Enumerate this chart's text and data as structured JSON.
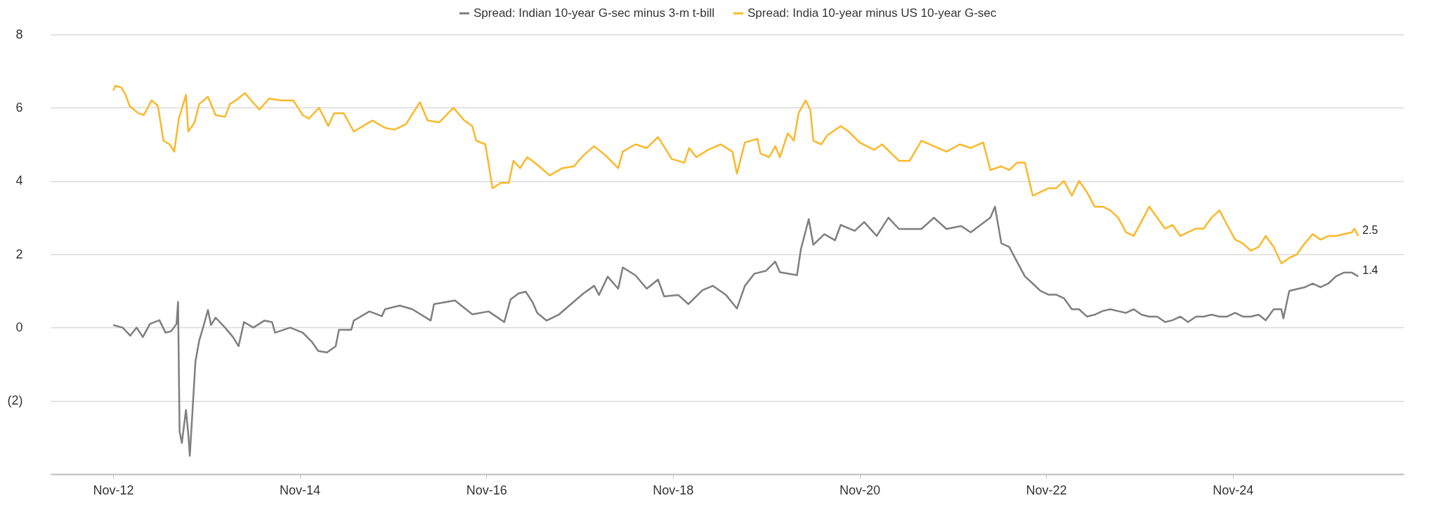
{
  "chart_data": {
    "type": "line",
    "legend": "top",
    "grid": "y",
    "xlim": [
      "2012-03-01",
      "2026-09-01"
    ],
    "xticks": [
      {
        "value": "2012-11-01",
        "label": "Nov-12"
      },
      {
        "value": "2014-11-01",
        "label": "Nov-14"
      },
      {
        "value": "2016-11-01",
        "label": "Nov-16"
      },
      {
        "value": "2018-11-01",
        "label": "Nov-18"
      },
      {
        "value": "2020-11-01",
        "label": "Nov-20"
      },
      {
        "value": "2022-11-01",
        "label": "Nov-22"
      },
      {
        "value": "2024-11-01",
        "label": "Nov-24"
      }
    ],
    "ylim": [
      -4,
      8
    ],
    "yticks": [
      8,
      6,
      4,
      2,
      0,
      {
        "value": -2,
        "label": "(2)"
      },
      {
        "value": -4,
        "label": null
      }
    ],
    "annotations": [
      {
        "text": "2.5",
        "x": "2026-03-07",
        "y": 2.5
      },
      {
        "text": "1.4",
        "x": "2026-03-07",
        "y": 1.4
      }
    ],
    "series": [
      {
        "name": "Spread: Indian 10-year G-sec minus 3-m t-bill",
        "color": "#7f7f7f",
        "x": [
          "2012-11-01",
          "2012-12-08",
          "2013-01-07",
          "2013-02-01",
          "2013-02-25",
          "2013-03-25",
          "2013-05-01",
          "2013-05-25",
          "2013-06-16",
          "2013-07-07",
          "2013-07-13",
          "2013-07-19",
          "2013-07-28",
          "2013-08-13",
          "2013-08-22",
          "2013-08-28",
          "2013-09-07",
          "2013-09-19",
          "2013-10-04",
          "2013-10-19",
          "2013-11-07",
          "2013-11-19",
          "2013-12-07",
          "2014-01-13",
          "2014-02-13",
          "2014-03-07",
          "2014-03-28",
          "2014-05-04",
          "2014-06-16",
          "2014-07-16",
          "2014-07-28",
          "2014-09-25",
          "2014-11-13",
          "2014-12-19",
          "2015-01-13",
          "2015-02-16",
          "2015-03-22",
          "2015-04-04",
          "2015-05-22",
          "2015-06-01",
          "2015-08-01",
          "2015-09-19",
          "2015-10-01",
          "2015-11-28",
          "2016-01-16",
          "2016-03-28",
          "2016-04-10",
          "2016-07-01",
          "2016-09-07",
          "2016-11-10",
          "2017-01-10",
          "2017-02-04",
          "2017-03-07",
          "2017-04-04",
          "2017-05-01",
          "2017-05-19",
          "2017-06-25",
          "2017-08-13",
          "2017-09-28",
          "2017-11-16",
          "2017-12-28",
          "2018-01-16",
          "2018-02-19",
          "2018-04-01",
          "2018-04-19",
          "2018-06-07",
          "2018-07-22",
          "2018-09-04",
          "2018-09-28",
          "2018-11-22",
          "2019-01-01",
          "2019-02-25",
          "2019-04-07",
          "2019-05-28",
          "2019-07-10",
          "2019-08-10",
          "2019-09-16",
          "2019-11-01",
          "2019-12-07",
          "2019-12-25",
          "2020-03-01",
          "2020-03-16",
          "2020-04-16",
          "2020-05-04",
          "2020-06-16",
          "2020-07-28",
          "2020-08-19",
          "2020-10-13",
          "2020-11-19",
          "2021-01-07",
          "2021-02-22",
          "2021-04-04",
          "2021-07-01",
          "2021-08-19",
          "2021-10-07",
          "2021-12-04",
          "2022-01-10",
          "2022-03-28",
          "2022-04-15",
          "2022-05-10",
          "2022-06-10",
          "2022-07-10",
          "2022-08-10",
          "2022-09-10",
          "2022-10-10",
          "2022-11-10",
          "2022-12-10",
          "2023-01-10",
          "2023-02-10",
          "2023-03-10",
          "2023-04-10",
          "2023-05-10",
          "2023-06-10",
          "2023-07-10",
          "2023-08-10",
          "2023-09-10",
          "2023-10-10",
          "2023-11-10",
          "2023-12-10",
          "2024-01-10",
          "2024-02-10",
          "2024-03-10",
          "2024-04-10",
          "2024-05-10",
          "2024-06-10",
          "2024-07-10",
          "2024-08-10",
          "2024-09-10",
          "2024-10-10",
          "2024-11-10",
          "2024-12-10",
          "2025-01-10",
          "2025-02-10",
          "2025-03-10",
          "2025-04-10",
          "2025-05-10",
          "2025-05-18",
          "2025-06-10",
          "2025-07-10",
          "2025-08-10",
          "2025-09-10",
          "2025-10-10",
          "2025-11-10",
          "2025-12-10",
          "2026-01-10",
          "2026-02-10",
          "2026-03-07"
        ],
        "values": [
          0.07,
          0.0,
          -0.22,
          0,
          -0.26,
          0.1,
          0.2,
          -0.14,
          -0.1,
          0.1,
          0.7,
          -2.83,
          -3.15,
          -2.25,
          -2.9,
          -3.5,
          -2.35,
          -0.93,
          -0.35,
          0,
          0.48,
          0.07,
          0.27,
          0,
          -0.26,
          -0.51,
          0.15,
          0,
          0.19,
          0.15,
          -0.14,
          0,
          -0.14,
          -0.39,
          -0.64,
          -0.68,
          -0.51,
          -0.06,
          -0.06,
          0.19,
          0.44,
          0.31,
          0.5,
          0.6,
          0.5,
          0.19,
          0.64,
          0.74,
          0.36,
          0.44,
          0.15,
          0.77,
          0.93,
          0.98,
          0.69,
          0.4,
          0.19,
          0.36,
          0.64,
          0.93,
          1.14,
          0.89,
          1.39,
          1.06,
          1.64,
          1.43,
          1.06,
          1.31,
          0.85,
          0.89,
          0.64,
          1.02,
          1.14,
          0.89,
          0.52,
          1.14,
          1.47,
          1.55,
          1.8,
          1.51,
          1.43,
          2.13,
          2.96,
          2.26,
          2.55,
          2.38,
          2.8,
          2.64,
          2.88,
          2.5,
          3.0,
          2.69,
          2.69,
          3.0,
          2.69,
          2.77,
          2.6,
          3.0,
          3.3,
          2.3,
          2.2,
          1.8,
          1.4,
          1.2,
          1.0,
          0.9,
          0.9,
          0.8,
          0.5,
          0.5,
          0.3,
          0.35,
          0.45,
          0.5,
          0.45,
          0.4,
          0.5,
          0.35,
          0.3,
          0.3,
          0.15,
          0.2,
          0.3,
          0.15,
          0.3,
          0.3,
          0.35,
          0.3,
          0.3,
          0.4,
          0.3,
          0.3,
          0.35,
          0.2,
          0.5,
          0.5,
          0.25,
          1.0,
          1.05,
          1.1,
          1.2,
          1.1,
          1.2,
          1.4,
          1.5,
          1.5,
          1.4
        ]
      },
      {
        "name": "Spread: India 10-year minus US 10-year G-sec",
        "color": "#fbb829",
        "x": [
          "2012-11-01",
          "2012-11-10",
          "2012-12-03",
          "2012-12-20",
          "2013-01-04",
          "2013-02-07",
          "2013-03-01",
          "2013-04-01",
          "2013-04-25",
          "2013-05-17",
          "2013-06-10",
          "2013-06-28",
          "2013-07-16",
          "2013-08-13",
          "2013-08-22",
          "2013-09-16",
          "2013-10-04",
          "2013-11-07",
          "2013-12-07",
          "2014-01-13",
          "2014-02-01",
          "2014-02-24",
          "2014-04-01",
          "2014-05-01",
          "2014-05-28",
          "2014-07-04",
          "2014-08-19",
          "2014-10-07",
          "2014-11-13",
          "2014-12-07",
          "2015-01-16",
          "2015-02-21",
          "2015-03-16",
          "2015-04-22",
          "2015-06-01",
          "2015-07-07",
          "2015-08-13",
          "2015-10-01",
          "2015-11-07",
          "2015-12-22",
          "2016-02-15",
          "2016-03-16",
          "2016-05-01",
          "2016-06-25",
          "2016-08-07",
          "2016-09-07",
          "2016-09-22",
          "2016-10-28",
          "2016-11-10",
          "2016-11-25",
          "2016-12-28",
          "2017-01-28",
          "2017-02-15",
          "2017-03-13",
          "2017-04-10",
          "2017-05-19",
          "2017-07-07",
          "2017-08-25",
          "2017-10-10",
          "2017-11-16",
          "2017-12-28",
          "2018-02-10",
          "2018-04-01",
          "2018-04-19",
          "2018-06-07",
          "2018-07-22",
          "2018-09-04",
          "2018-10-28",
          "2018-12-16",
          "2019-01-04",
          "2019-02-01",
          "2019-03-19",
          "2019-05-07",
          "2019-06-22",
          "2019-07-10",
          "2019-08-10",
          "2019-09-28",
          "2019-10-10",
          "2019-11-13",
          "2019-12-07",
          "2019-12-25",
          "2020-01-25",
          "2020-02-18",
          "2020-03-07",
          "2020-04-04",
          "2020-04-22",
          "2020-05-04",
          "2020-06-04",
          "2020-06-28",
          "2020-08-19",
          "2020-09-19",
          "2020-11-01",
          "2020-12-28",
          "2021-01-28",
          "2021-04-04",
          "2021-05-16",
          "2021-07-01",
          "2021-08-19",
          "2021-10-07",
          "2021-11-28",
          "2022-01-10",
          "2022-02-28",
          "2022-03-28",
          "2022-05-10",
          "2022-06-10",
          "2022-07-10",
          "2022-08-10",
          "2022-09-10",
          "2022-10-10",
          "2022-11-10",
          "2022-12-10",
          "2023-01-10",
          "2023-02-10",
          "2023-03-10",
          "2023-04-10",
          "2023-05-10",
          "2023-06-10",
          "2023-07-10",
          "2023-08-10",
          "2023-09-10",
          "2023-10-10",
          "2023-11-10",
          "2023-12-10",
          "2024-01-10",
          "2024-02-10",
          "2024-03-10",
          "2024-04-10",
          "2024-05-10",
          "2024-06-10",
          "2024-07-10",
          "2024-08-10",
          "2024-09-10",
          "2024-10-10",
          "2024-11-10",
          "2024-12-10",
          "2025-01-10",
          "2025-02-10",
          "2025-03-10",
          "2025-04-10",
          "2025-05-10",
          "2025-06-10",
          "2025-07-10",
          "2025-08-10",
          "2025-09-10",
          "2025-10-10",
          "2025-11-10",
          "2025-12-10",
          "2026-01-10",
          "2026-02-10",
          "2026-02-20",
          "2026-03-07"
        ],
        "values": [
          6.47,
          6.6,
          6.55,
          6.35,
          6.05,
          5.85,
          5.8,
          6.2,
          6.05,
          5.1,
          5.0,
          4.8,
          5.7,
          6.35,
          5.35,
          5.6,
          6.1,
          6.3,
          5.8,
          5.75,
          6.1,
          6.2,
          6.4,
          6.15,
          5.95,
          6.25,
          6.2,
          6.2,
          5.8,
          5.7,
          6.0,
          5.5,
          5.85,
          5.85,
          5.35,
          5.5,
          5.65,
          5.45,
          5.4,
          5.55,
          6.15,
          5.65,
          5.6,
          6.0,
          5.65,
          5.5,
          5.1,
          5.0,
          4.45,
          3.8,
          3.95,
          3.95,
          4.55,
          4.35,
          4.65,
          4.45,
          4.15,
          4.35,
          4.4,
          4.7,
          4.95,
          4.7,
          4.35,
          4.8,
          5.0,
          4.9,
          5.2,
          4.6,
          4.5,
          4.9,
          4.65,
          4.85,
          5.0,
          4.8,
          4.2,
          5.05,
          5.15,
          4.75,
          4.65,
          4.95,
          4.65,
          5.3,
          5.1,
          5.85,
          6.2,
          5.95,
          5.1,
          5.0,
          5.25,
          5.5,
          5.35,
          5.05,
          4.85,
          5.0,
          4.55,
          4.55,
          5.1,
          4.95,
          4.8,
          5.0,
          4.9,
          5.05,
          4.3,
          4.4,
          4.3,
          4.5,
          4.5,
          3.6,
          3.7,
          3.8,
          3.8,
          4.0,
          3.6,
          4.0,
          3.7,
          3.3,
          3.3,
          3.2,
          3.0,
          2.6,
          2.5,
          2.9,
          3.3,
          3.0,
          2.7,
          2.8,
          2.5,
          2.6,
          2.7,
          2.7,
          3.0,
          3.2,
          2.8,
          2.4,
          2.3,
          2.1,
          2.2,
          2.5,
          2.2,
          1.75,
          1.9,
          2.0,
          2.3,
          2.55,
          2.4,
          2.5,
          2.5,
          2.55,
          2.6,
          2.7,
          2.5
        ]
      }
    ]
  }
}
